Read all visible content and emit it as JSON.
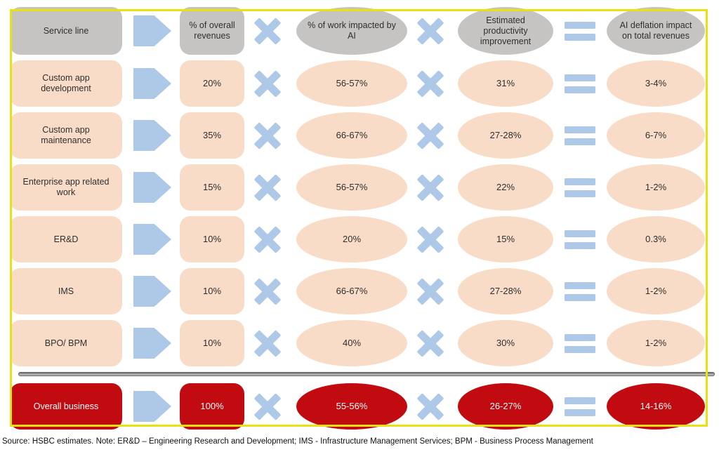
{
  "figure": {
    "header": {
      "service_line": "Service line",
      "overall_revenues": "% of overall revenues",
      "work_impacted": "% of work impacted by AI",
      "productivity": "Estimated productivity improvement",
      "deflation": "AI deflation impact on total revenues"
    },
    "rows": [
      {
        "label": "Custom app development",
        "revenues": "20%",
        "work": "56-57%",
        "productivity": "31%",
        "deflation": "3-4%"
      },
      {
        "label": "Custom app maintenance",
        "revenues": "35%",
        "work": "66-67%",
        "productivity": "27-28%",
        "deflation": "6-7%"
      },
      {
        "label": "Enterprise app related work",
        "revenues": "15%",
        "work": "56-57%",
        "productivity": "22%",
        "deflation": "1-2%"
      },
      {
        "label": "ER&D",
        "revenues": "10%",
        "work": "20%",
        "productivity": "15%",
        "deflation": "0.3%"
      },
      {
        "label": "IMS",
        "revenues": "10%",
        "work": "66-67%",
        "productivity": "27-28%",
        "deflation": "1-2%"
      },
      {
        "label": "BPO/ BPM",
        "revenues": "10%",
        "work": "40%",
        "productivity": "30%",
        "deflation": "1-2%"
      }
    ],
    "overall": {
      "label": "Overall business",
      "revenues": "100%",
      "work": "55-56%",
      "productivity": "26-27%",
      "deflation": "14-16%"
    },
    "operators": {
      "multiply": "multiply-x",
      "equals": "equals",
      "arrow": "arrow-right"
    }
  },
  "source_note": "Source: HSBC estimates. Note: ER&D – Engineering Research and Development; IMS - Infrastructure Management Services; BPM - Business Process Management",
  "colors": {
    "header_gray": "#c5c4c2",
    "row_peach": "#f8dcc7",
    "operator_blue": "#aec8e8",
    "overall_red": "#c20b10",
    "frame_yellow": "#e7e312"
  },
  "chart_data": {
    "type": "table",
    "columns": [
      "Service line",
      "% of overall revenues",
      "% of work impacted by AI",
      "Estimated productivity improvement",
      "AI deflation impact on total revenues"
    ],
    "rows": [
      [
        "Custom app development",
        "20%",
        "56-57%",
        "31%",
        "3-4%"
      ],
      [
        "Custom app maintenance",
        "35%",
        "66-67%",
        "27-28%",
        "6-7%"
      ],
      [
        "Enterprise app related work",
        "15%",
        "56-57%",
        "22%",
        "1-2%"
      ],
      [
        "ER&D",
        "10%",
        "20%",
        "15%",
        "0.3%"
      ],
      [
        "IMS",
        "10%",
        "66-67%",
        "27-28%",
        "1-2%"
      ],
      [
        "BPO/ BPM",
        "10%",
        "40%",
        "30%",
        "1-2%"
      ],
      [
        "Overall business",
        "100%",
        "55-56%",
        "26-27%",
        "14-16%"
      ]
    ],
    "relationship": "% of overall revenues × % of work impacted by AI × Estimated productivity improvement = AI deflation impact on total revenues"
  }
}
